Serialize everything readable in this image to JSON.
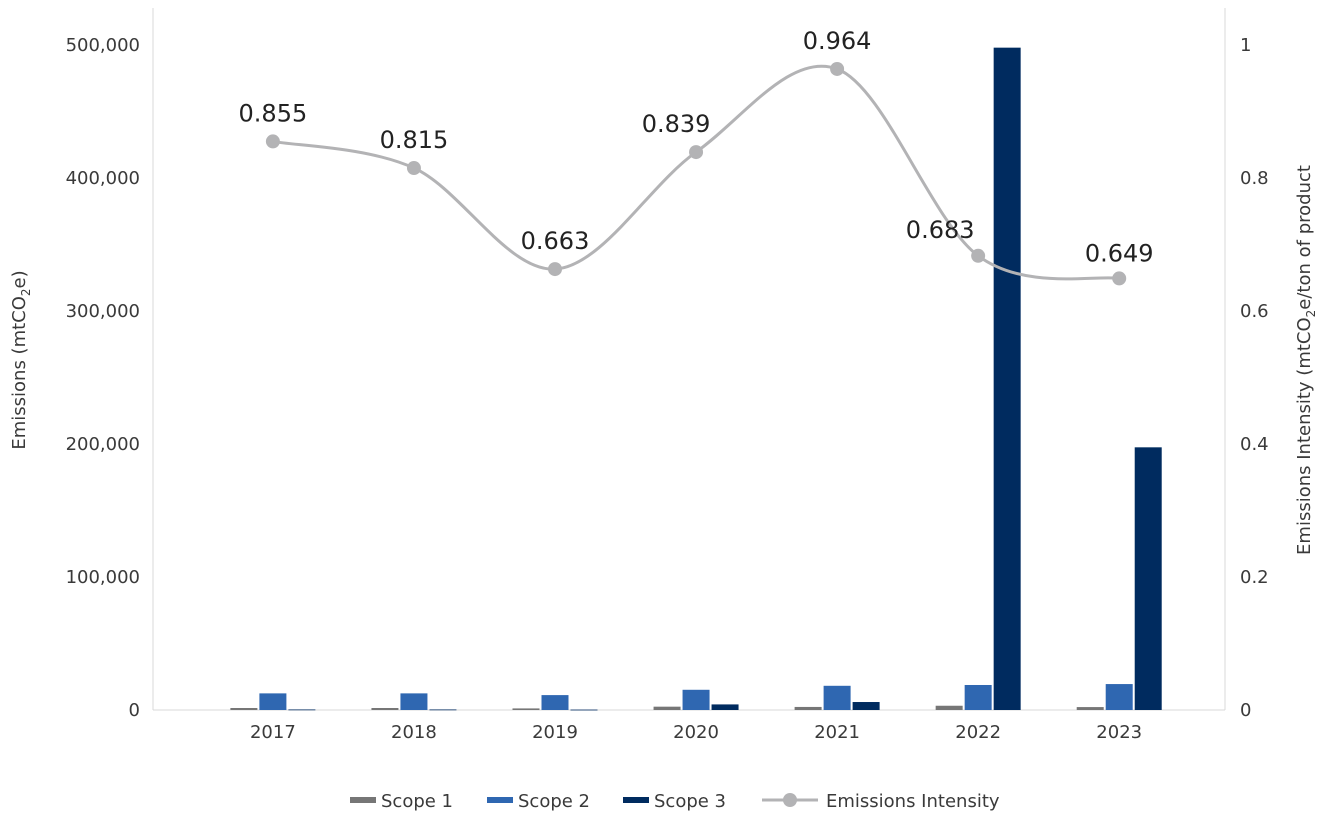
{
  "chart_data": {
    "type": "bar",
    "categories": [
      "2017",
      "2018",
      "2019",
      "2020",
      "2021",
      "2022",
      "2023"
    ],
    "series": [
      {
        "name": "Scope 1",
        "kind": "bar",
        "axis": "left",
        "color": "#767676",
        "values": [
          1500,
          1500,
          1200,
          2500,
          2300,
          3200,
          2200
        ]
      },
      {
        "name": "Scope 2",
        "kind": "bar",
        "axis": "left",
        "color": "#2f67b1",
        "values": [
          12500,
          12500,
          11200,
          15200,
          18200,
          18800,
          19500
        ]
      },
      {
        "name": "Scope 3",
        "kind": "bar",
        "axis": "left",
        "color": "#002b5f",
        "values": [
          400,
          400,
          300,
          4200,
          6000,
          498000,
          197500
        ]
      },
      {
        "name": "Emissions Intensity",
        "kind": "line",
        "axis": "right",
        "color": "#b3b3b5",
        "values": [
          0.855,
          0.815,
          0.663,
          0.839,
          0.964,
          0.683,
          0.649
        ],
        "labels": [
          "0.855",
          "0.815",
          "0.663",
          "0.839",
          "0.964",
          "0.683",
          "0.649"
        ]
      }
    ],
    "y_left": {
      "label": "Emissions (mtCO",
      "label_sub": "2",
      "label_end": "e)",
      "ylim": [
        0,
        500000
      ],
      "ticks": [
        0,
        100000,
        200000,
        300000,
        400000,
        500000
      ],
      "tick_labels": [
        "0",
        "100,000",
        "200,000",
        "300,000",
        "400,000",
        "500,000"
      ]
    },
    "y_right": {
      "label": "Emissions Intensity (mtCO",
      "label_sub": "2",
      "label_end": "e/ton of product",
      "ylim": [
        0,
        1
      ],
      "ticks": [
        0,
        0.2,
        0.4,
        0.6,
        0.8,
        1
      ],
      "tick_labels": [
        "0",
        "0.2",
        "0.4",
        "0.6",
        "0.8",
        "1"
      ]
    },
    "grid": false,
    "legend_position": "bottom",
    "legend": [
      "Scope 1",
      "Scope 2",
      "Scope 3",
      "Emissions Intensity"
    ]
  }
}
